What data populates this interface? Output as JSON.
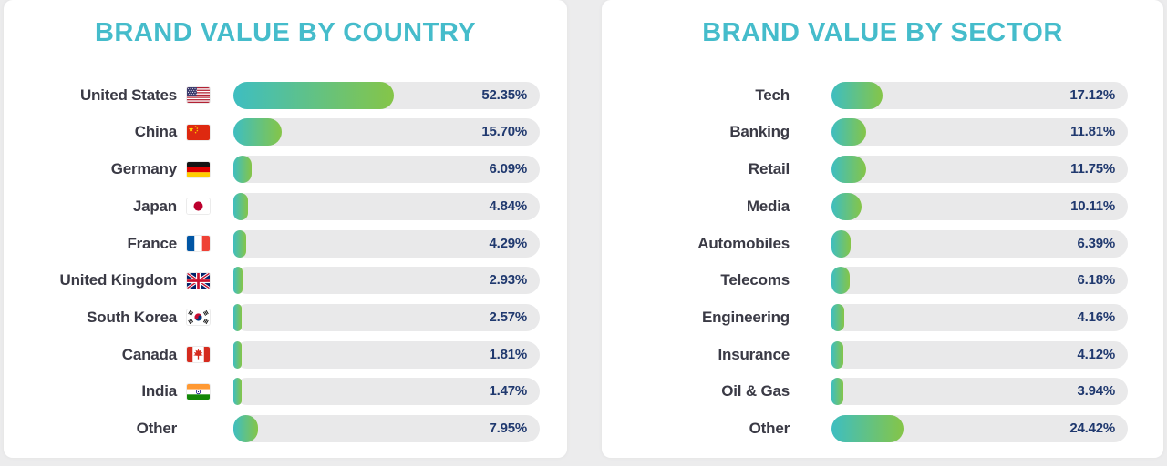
{
  "style": {
    "accent_teal": "#45BCCB",
    "bar_gradient_start": "#3EBEC1",
    "bar_gradient_end": "#85C548",
    "value_text_color": "#20396F",
    "label_text_color": "#3A3A45",
    "track_color": "#E9E9EA",
    "card_bg": "#FFFFFF",
    "page_bg": "#ECECED"
  },
  "chart_data": [
    {
      "type": "bar",
      "orientation": "horizontal",
      "title": "BRAND VALUE BY COUNTRY",
      "unit": "percent",
      "xlim": [
        0,
        100
      ],
      "grid": false,
      "legend": false,
      "rows": [
        {
          "category": "United States",
          "value": 52.35,
          "label": "52.35%",
          "flag": "united-states"
        },
        {
          "category": "China",
          "value": 15.7,
          "label": "15.70%",
          "flag": "china"
        },
        {
          "category": "Germany",
          "value": 6.09,
          "label": "6.09%",
          "flag": "germany"
        },
        {
          "category": "Japan",
          "value": 4.84,
          "label": "4.84%",
          "flag": "japan"
        },
        {
          "category": "France",
          "value": 4.29,
          "label": "4.29%",
          "flag": "france"
        },
        {
          "category": "United Kingdom",
          "value": 2.93,
          "label": "2.93%",
          "flag": "united-kingdom"
        },
        {
          "category": "South Korea",
          "value": 2.57,
          "label": "2.57%",
          "flag": "south-korea"
        },
        {
          "category": "Canada",
          "value": 1.81,
          "label": "1.81%",
          "flag": "canada"
        },
        {
          "category": "India",
          "value": 1.47,
          "label": "1.47%",
          "flag": "india"
        },
        {
          "category": "Other",
          "value": 7.95,
          "label": "7.95%",
          "flag": null
        }
      ]
    },
    {
      "type": "bar",
      "orientation": "horizontal",
      "title": "BRAND VALUE BY SECTOR",
      "unit": "percent",
      "xlim": [
        0,
        100
      ],
      "grid": false,
      "legend": false,
      "rows": [
        {
          "category": "Tech",
          "value": 17.12,
          "label": "17.12%",
          "flag": null
        },
        {
          "category": "Banking",
          "value": 11.81,
          "label": "11.81%",
          "flag": null
        },
        {
          "category": "Retail",
          "value": 11.75,
          "label": "11.75%",
          "flag": null
        },
        {
          "category": "Media",
          "value": 10.11,
          "label": "10.11%",
          "flag": null
        },
        {
          "category": "Automobiles",
          "value": 6.39,
          "label": "6.39%",
          "flag": null
        },
        {
          "category": "Telecoms",
          "value": 6.18,
          "label": "6.18%",
          "flag": null
        },
        {
          "category": "Engineering",
          "value": 4.16,
          "label": "4.16%",
          "flag": null
        },
        {
          "category": "Insurance",
          "value": 4.12,
          "label": "4.12%",
          "flag": null
        },
        {
          "category": "Oil & Gas",
          "value": 3.94,
          "label": "3.94%",
          "flag": null
        },
        {
          "category": "Other",
          "value": 24.42,
          "label": "24.42%",
          "flag": null
        }
      ]
    }
  ]
}
